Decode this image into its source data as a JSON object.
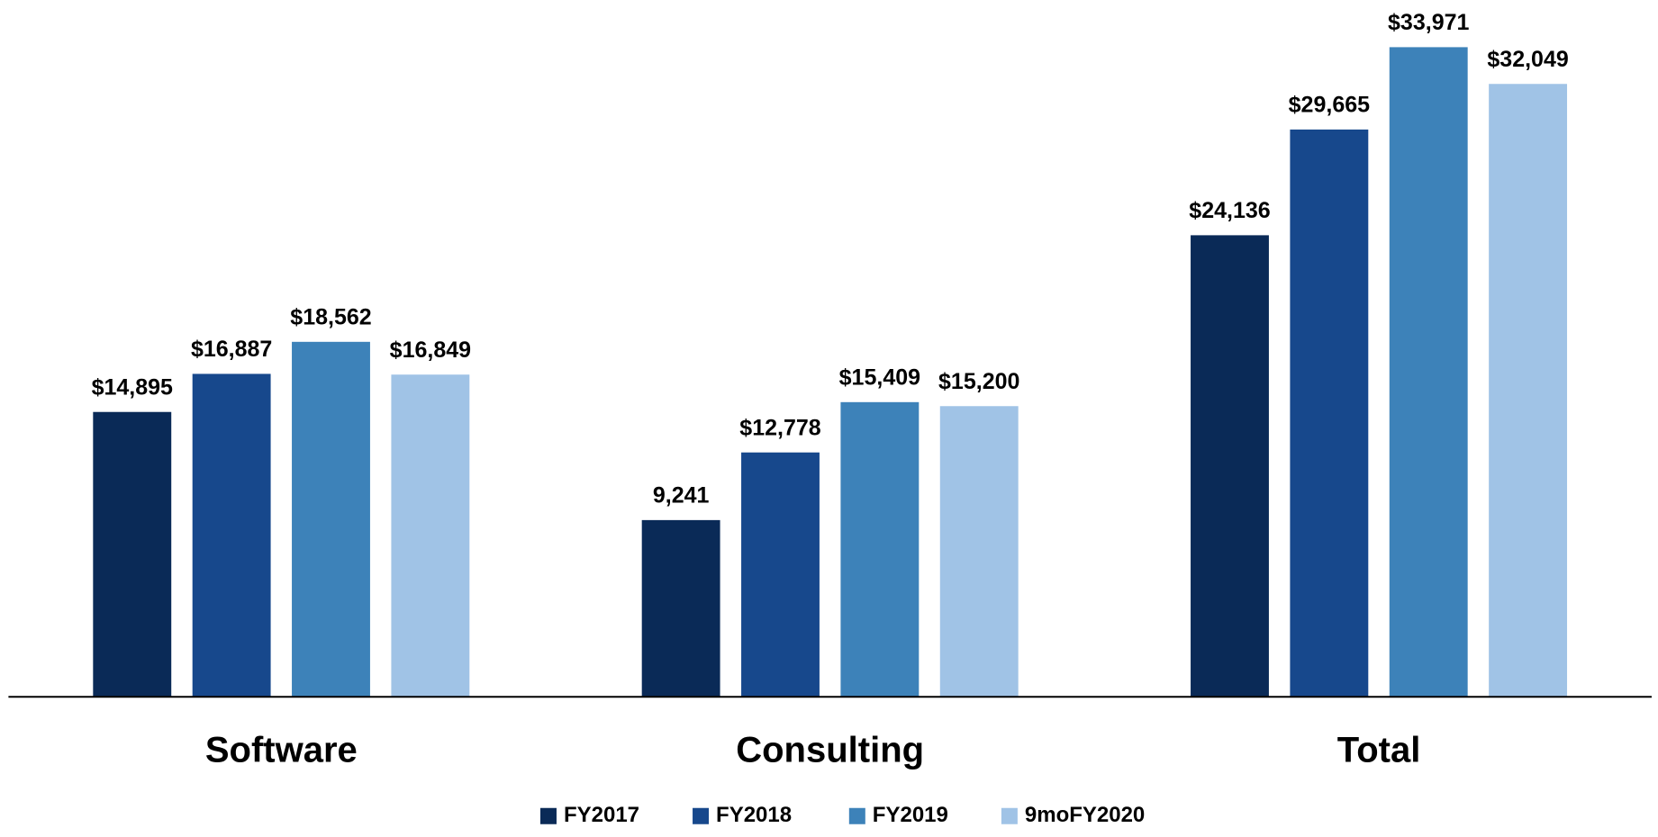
{
  "chart_data": {
    "type": "bar",
    "categories": [
      "Software",
      "Consulting",
      "Total"
    ],
    "series": [
      {
        "name": "FY2017",
        "color": "#0a2a57",
        "values": [
          14895,
          9241,
          24136
        ],
        "value_labels": [
          "$14,895",
          "9,241",
          "$24,136"
        ]
      },
      {
        "name": "FY2018",
        "color": "#17488c",
        "values": [
          16887,
          12778,
          29665
        ],
        "value_labels": [
          "$16,887",
          "$12,778",
          "$29,665"
        ]
      },
      {
        "name": "FY2019",
        "color": "#3d82b9",
        "values": [
          18562,
          15409,
          33971
        ],
        "value_labels": [
          "$18,562",
          "$15,409",
          "$33,971"
        ]
      },
      {
        "name": "9moFY2020",
        "color": "#a0c3e6",
        "values": [
          16849,
          15200,
          32049
        ],
        "value_labels": [
          "$16,849",
          "$15,200",
          "$32,049"
        ]
      }
    ],
    "ylim": [
      0,
      36000
    ],
    "legend": "bottom"
  }
}
